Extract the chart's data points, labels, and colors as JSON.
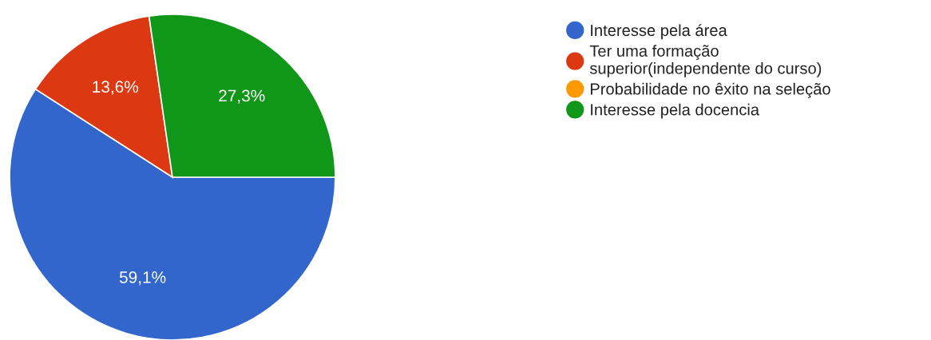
{
  "chart_data": {
    "type": "pie",
    "categories": [
      "Interesse pela área",
      "Ter uma formação\nsuperior(independente do curso)",
      "Probabilidade no êxito na seleção",
      "Interesse pela docencia"
    ],
    "values": [
      59.1,
      13.6,
      0,
      27.3
    ],
    "colors": [
      "#3366cc",
      "#dc3912",
      "#ff9900",
      "#109618"
    ],
    "value_labels": [
      "59,1%",
      "13,6%",
      null,
      "27,3%"
    ],
    "legend": "right"
  }
}
